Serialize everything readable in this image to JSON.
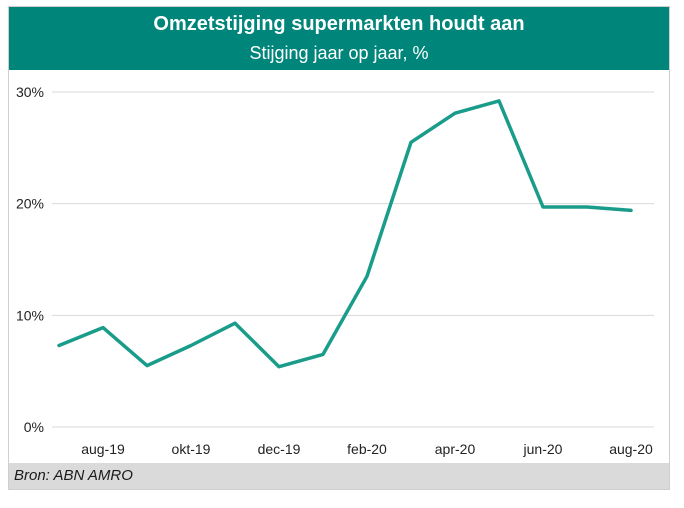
{
  "header": {
    "title": "Omzetstijging supermarkten houdt aan",
    "subtitle": "Stijging jaar op jaar, %"
  },
  "footer": {
    "source": "Bron: ABN AMRO"
  },
  "colors": {
    "header_bg": "#00857a",
    "series_line": "#1a9c8a",
    "grid": "#d9d9d9",
    "footer_bg": "#dadada"
  },
  "chart_data": {
    "type": "line",
    "title": "Omzetstijging supermarkten houdt aan",
    "subtitle": "Stijging jaar op jaar, %",
    "xlabel": "",
    "ylabel": "",
    "ylim": [
      0,
      30
    ],
    "yticks": [
      "0%",
      "10%",
      "20%",
      "30%"
    ],
    "ytick_values": [
      0,
      10,
      20,
      30
    ],
    "x": [
      "jul-19",
      "aug-19",
      "sep-19",
      "okt-19",
      "nov-19",
      "dec-19",
      "jan-20",
      "feb-20",
      "mrt-20",
      "apr-20",
      "mei-20",
      "jun-20",
      "jul-20",
      "aug-20"
    ],
    "xtick_labels": [
      "aug-19",
      "okt-19",
      "dec-19",
      "feb-20",
      "apr-20",
      "jun-20",
      "aug-20"
    ],
    "xtick_indices": [
      1,
      3,
      5,
      7,
      9,
      11,
      13
    ],
    "series": [
      {
        "values": [
          7.3,
          8.9,
          5.5,
          7.3,
          9.3,
          5.4,
          6.5,
          13.5,
          25.5,
          28.1,
          29.2,
          19.7,
          19.7,
          19.4
        ]
      }
    ],
    "grid": true,
    "legend": "none"
  }
}
